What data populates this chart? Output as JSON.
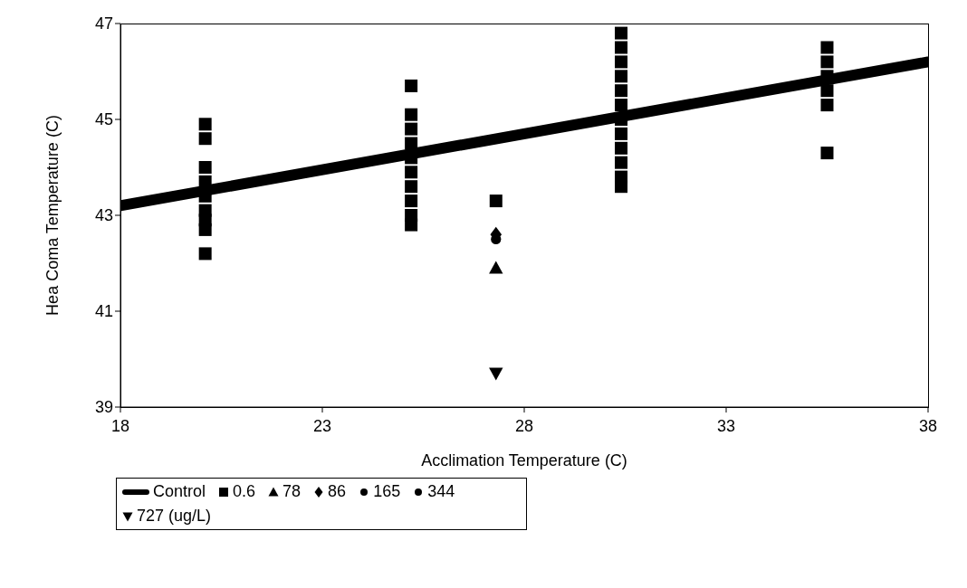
{
  "chart_data": {
    "type": "scatter",
    "xlabel": "Acclimation Temperature (C)",
    "ylabel": "Hea Coma Temperature (C)",
    "xlim": [
      18,
      38
    ],
    "xticks": [
      18,
      23,
      28,
      33,
      38
    ],
    "ylim": [
      39,
      47
    ],
    "yticks": [
      39,
      41,
      43,
      45,
      47
    ],
    "grid": false,
    "legend": "bottom",
    "series": [
      {
        "name": "Control",
        "type": "line",
        "color": "#000000",
        "marker": "none",
        "x": [
          18,
          38
        ],
        "values": [
          43.2,
          46.2
        ]
      },
      {
        "name": "0.6",
        "color": "#000000",
        "marker": "square",
        "x": [
          20.1,
          20.1,
          20.1,
          20.1,
          20.1,
          20.1,
          20.1,
          20.1,
          20.1,
          25.2,
          25.2,
          25.2,
          25.2,
          25.2,
          25.2,
          25.2,
          25.2,
          25.2,
          25.2,
          27.3,
          30.4,
          30.4,
          30.4,
          30.4,
          30.4,
          30.4,
          30.4,
          30.4,
          30.4,
          30.4,
          30.4,
          30.4,
          35.5,
          35.5,
          35.5,
          35.5,
          35.5,
          35.5
        ],
        "values": [
          44.9,
          44.6,
          44.0,
          43.7,
          43.4,
          43.1,
          42.9,
          42.7,
          42.2,
          45.7,
          45.1,
          44.8,
          44.5,
          44.2,
          43.9,
          43.6,
          43.3,
          43.0,
          42.8,
          43.3,
          46.8,
          46.5,
          46.2,
          45.9,
          45.6,
          45.3,
          45.0,
          44.7,
          44.4,
          44.1,
          43.8,
          43.6,
          46.5,
          46.2,
          45.9,
          45.6,
          45.3,
          44.3
        ]
      },
      {
        "name": "78",
        "color": "#000000",
        "marker": "triangle",
        "x": [
          27.3
        ],
        "values": [
          41.9
        ]
      },
      {
        "name": "86",
        "color": "#000000",
        "marker": "diamond",
        "x": [
          27.3
        ],
        "values": [
          42.6
        ]
      },
      {
        "name": "165",
        "color": "#000000",
        "marker": "circle",
        "x": [
          27.3
        ],
        "values": [
          42.5
        ]
      },
      {
        "name": "344",
        "color": "#000000",
        "marker": "circle"
      },
      {
        "name": "727 (ug/L)",
        "color": "#000000",
        "marker": "triangle-down",
        "x": [
          27.3
        ],
        "values": [
          39.7
        ]
      }
    ]
  }
}
